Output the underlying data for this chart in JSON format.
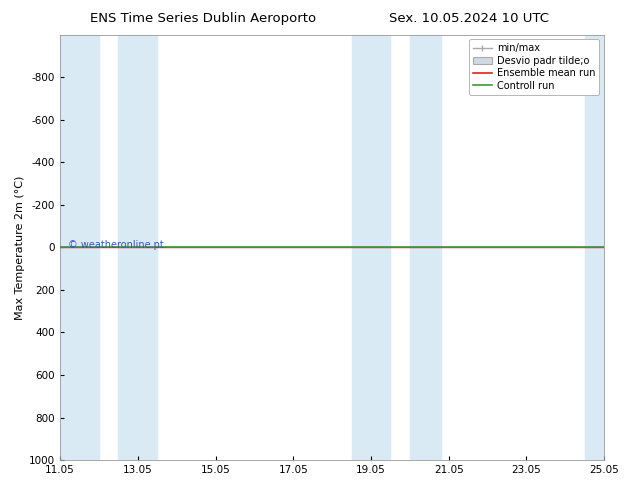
{
  "title_left": "ENS Time Series Dublin Aeroporto",
  "title_right": "Sex. 10.05.2024 10 UTC",
  "ylabel": "Max Temperature 2m (°C)",
  "ylim_top": -1000,
  "ylim_bottom": 1000,
  "yticks": [
    -800,
    -600,
    -400,
    -200,
    0,
    200,
    400,
    600,
    800,
    1000
  ],
  "xlim_start": 0,
  "xlim_end": 14,
  "xtick_labels": [
    "11.05",
    "13.05",
    "15.05",
    "17.05",
    "19.05",
    "21.05",
    "23.05",
    "25.05"
  ],
  "xtick_positions": [
    0,
    2,
    4,
    6,
    8,
    10,
    12,
    14
  ],
  "shade_bands": [
    [
      0.0,
      1.0
    ],
    [
      1.5,
      2.5
    ],
    [
      7.5,
      8.5
    ],
    [
      9.0,
      9.8
    ],
    [
      13.5,
      14.0
    ]
  ],
  "shade_color": "#daeaf5",
  "green_line_y": 0,
  "red_line_y": 0,
  "green_color": "#3a9a3a",
  "red_color": "#dd2222",
  "watermark": "© weatheronline.pt",
  "watermark_color": "#3355bb",
  "background_color": "#ffffff",
  "legend_labels": [
    "min/max",
    "Desvio padr tilde;o",
    "Ensemble mean run",
    "Controll run"
  ],
  "legend_line_color": "#aaaaaa",
  "legend_std_color": "#c0c0c0",
  "title_fontsize": 9.5,
  "tick_fontsize": 7.5,
  "ylabel_fontsize": 8,
  "legend_fontsize": 7,
  "watermark_fontsize": 7
}
